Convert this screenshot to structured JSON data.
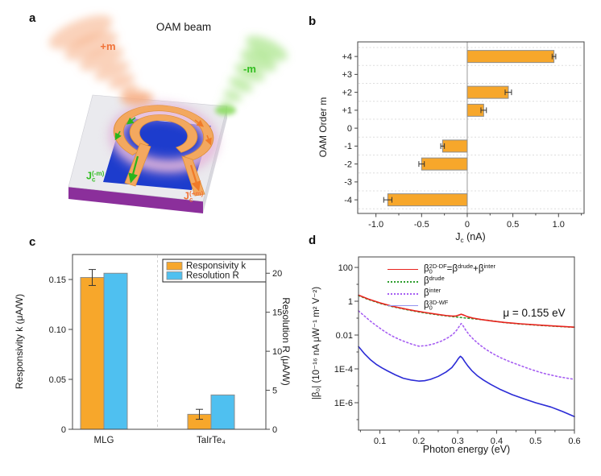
{
  "panel_labels": {
    "a": "a",
    "b": "b",
    "c": "c",
    "d": "d"
  },
  "panel_a": {
    "title": "OAM beam",
    "beam_plus": "+m",
    "beam_minus": "-m",
    "jc_minus_segments": [
      [
        "J",
        ""
      ],
      [
        "c",
        "sub"
      ],
      [
        "(-m)",
        "sup"
      ]
    ],
    "jc_plus_segments": [
      [
        "J",
        ""
      ],
      [
        "c",
        "sub"
      ],
      [
        "(+m)",
        "sup"
      ]
    ],
    "colors": {
      "beam_plus": "#f6ad83",
      "beam_plus_label": "#f0743a",
      "beam_minus": "#8fdc66",
      "beam_minus_label": "#33bd22",
      "substrate_top": "#eaeaee",
      "substrate_side_right": "#d8d8de",
      "substrate_side_bottom": "#8b2f9b",
      "film": "#1d3ccd",
      "ring_glow": "#dfa6d2",
      "ring_glow_inner": "#eec6e2",
      "electrode": "#f3a85f",
      "electrode_edge": "#dd8f3a",
      "arrow_minus": "#2ab51c",
      "arrow_plus": "#f07a28"
    }
  },
  "chart_data": [
    {
      "panel": "b",
      "type": "bar",
      "orientation": "horizontal",
      "categories": [
        "+4",
        "+3",
        "+2",
        "+1",
        "0",
        "-1",
        "-2",
        "-3",
        "-4"
      ],
      "values": [
        0.95,
        0,
        0.45,
        0.18,
        0,
        -0.27,
        -0.5,
        0,
        -0.87
      ],
      "errors": [
        0.02,
        0,
        0.035,
        0.03,
        0,
        0.02,
        0.03,
        0,
        0.045
      ],
      "ylabel": "OAM Order m",
      "xlabel_segments": [
        [
          "J",
          ""
        ],
        [
          "c",
          "sub"
        ],
        [
          " (nA)",
          ""
        ]
      ],
      "xlim": [
        -1.2,
        1.28
      ],
      "xticks": [
        {
          "v": -1,
          "label": "-1.0"
        },
        {
          "v": -0.5,
          "label": "-0.5"
        },
        {
          "v": 0,
          "label": "0"
        },
        {
          "v": 0.5,
          "label": "0.5"
        },
        {
          "v": 1,
          "label": "1.0"
        }
      ],
      "xminors": [
        -0.75,
        -0.25,
        0.25,
        0.75,
        1.25
      ],
      "grid": "dashed-horizontal",
      "bar_color": "#f7a72b",
      "bar_edge": "#8c8c8c",
      "error_color": "#333333"
    },
    {
      "panel": "c",
      "type": "bar",
      "orientation": "vertical",
      "categories": [
        "MLG",
        "TaIrTe₄"
      ],
      "series": [
        {
          "name": "Responsivity k",
          "axis": "left",
          "values": [
            0.152,
            0.015
          ],
          "errors": [
            0.008,
            0.005
          ],
          "color": "#f7a72b",
          "edge": "#8c8c8c"
        },
        {
          "name": "Resolution R",
          "axis": "right",
          "values": [
            20,
            4.4
          ],
          "errors": [
            0,
            0
          ],
          "color": "#4fc0f0",
          "edge": "#8c8c8c"
        }
      ],
      "left_axis": {
        "label": "Responsivity k (μA/W)",
        "lim": [
          0,
          0.175
        ],
        "ticks": [
          {
            "v": 0,
            "label": "0"
          },
          {
            "v": 0.05,
            "label": "0.05"
          },
          {
            "v": 0.1,
            "label": "0.10"
          },
          {
            "v": 0.15,
            "label": "0.15"
          }
        ]
      },
      "right_axis": {
        "label": "Resolution R (μA/W)",
        "lim": [
          0,
          22.4
        ],
        "ticks": [
          {
            "v": 0,
            "label": "0"
          },
          {
            "v": 5,
            "label": "5"
          },
          {
            "v": 10,
            "label": "10"
          },
          {
            "v": 15,
            "label": "15"
          },
          {
            "v": 20,
            "label": "20"
          }
        ]
      },
      "legend_position": "top-right",
      "separator": "dashed-vertical-between-groups",
      "error_color": "#333333"
    },
    {
      "panel": "d",
      "type": "line",
      "ylog": true,
      "xlabel": "Photon energy (eV)",
      "ylabel": "|β₀| (10⁻¹⁶ nA μW⁻¹ m² V⁻²)",
      "annotation": "μ = 0.155 eV",
      "xlim": [
        0.045,
        0.6
      ],
      "ylim": [
        2.4e-08,
        417
      ],
      "xticks": [
        {
          "v": 0.1,
          "label": "0.1"
        },
        {
          "v": 0.2,
          "label": "0.2"
        },
        {
          "v": 0.3,
          "label": "0.3"
        },
        {
          "v": 0.4,
          "label": "0.4"
        },
        {
          "v": 0.5,
          "label": "0.5"
        },
        {
          "v": 0.6,
          "label": "0.6"
        }
      ],
      "xminors": [
        0.05,
        0.15,
        0.25,
        0.35,
        0.45,
        0.55
      ],
      "yticks": [
        {
          "v": 100,
          "label": "100"
        },
        {
          "v": 1,
          "label": "1"
        },
        {
          "v": 0.01,
          "label": "0.01"
        },
        {
          "v": 0.0001,
          "label": "1E-4"
        },
        {
          "v": 1e-06,
          "label": "1E-6"
        }
      ],
      "yminor_exponents": [
        1,
        -1,
        -3,
        -5,
        -7
      ],
      "draw_order": [
        1,
        2,
        3,
        0
      ],
      "series": [
        {
          "name_segments": [
            [
              "β",
              ""
            ],
            [
              "0",
              "sub"
            ],
            [
              "2D-DF",
              "sup"
            ],
            [
              "=β",
              ""
            ],
            [
              "drude",
              "sup"
            ],
            [
              "+β",
              ""
            ],
            [
              "inter",
              "sup"
            ]
          ],
          "color": "#e8231e",
          "legend_color": "#e8231e",
          "style": "solid",
          "width": 1.6,
          "x": [
            0.045,
            0.07,
            0.1,
            0.13,
            0.16,
            0.19,
            0.22,
            0.25,
            0.27,
            0.285,
            0.295,
            0.303,
            0.309,
            0.316,
            0.325,
            0.34,
            0.36,
            0.39,
            0.42,
            0.46,
            0.5,
            0.55,
            0.6
          ],
          "y": [
            2.3,
            1.35,
            0.8,
            0.52,
            0.37,
            0.27,
            0.21,
            0.165,
            0.143,
            0.133,
            0.133,
            0.152,
            0.17,
            0.15,
            0.122,
            0.1,
            0.083,
            0.067,
            0.056,
            0.0465,
            0.04,
            0.034,
            0.0295
          ]
        },
        {
          "name_segments": [
            [
              "β",
              ""
            ],
            [
              "drude",
              "sup"
            ]
          ],
          "color": "#2f9e2f",
          "legend_color": "#2f9e2f",
          "style": "dotted",
          "width": 1.6,
          "x": [
            0.045,
            0.07,
            0.1,
            0.13,
            0.16,
            0.19,
            0.22,
            0.25,
            0.28,
            0.31,
            0.34,
            0.38,
            0.42,
            0.46,
            0.5,
            0.55,
            0.6
          ],
          "y": [
            2.15,
            1.27,
            0.75,
            0.49,
            0.35,
            0.255,
            0.196,
            0.155,
            0.128,
            0.108,
            0.0915,
            0.0735,
            0.0545,
            0.0452,
            0.0388,
            0.033,
            0.0287
          ]
        },
        {
          "name_segments": [
            [
              "β",
              ""
            ],
            [
              "inter",
              "sup"
            ]
          ],
          "color": "#a65ef2",
          "legend_color": "#a65ef2",
          "style": "dotted",
          "width": 1.6,
          "x": [
            0.045,
            0.06,
            0.075,
            0.09,
            0.105,
            0.12,
            0.135,
            0.15,
            0.165,
            0.18,
            0.2,
            0.22,
            0.24,
            0.26,
            0.275,
            0.288,
            0.297,
            0.304,
            0.309,
            0.314,
            0.321,
            0.33,
            0.342,
            0.356,
            0.372,
            0.39,
            0.41,
            0.435,
            0.46,
            0.49,
            0.52,
            0.56,
            0.6
          ],
          "y": [
            0.27,
            0.135,
            0.068,
            0.037,
            0.021,
            0.0125,
            0.008,
            0.0055,
            0.004,
            0.003,
            0.0022,
            0.0024,
            0.0031,
            0.0046,
            0.007,
            0.0112,
            0.019,
            0.033,
            0.048,
            0.035,
            0.019,
            0.01,
            0.0052,
            0.0027,
            0.00145,
            0.0008,
            0.00046,
            0.00026,
            0.00016,
            9e-05,
            5.5e-05,
            3.4e-05,
            2.4e-05
          ]
        },
        {
          "name_segments": [
            [
              "β",
              ""
            ],
            [
              "0",
              "sub"
            ],
            [
              "3D-WF",
              "sup"
            ]
          ],
          "color": "#2b2bd6",
          "legend_color": "#9393ef",
          "style": "solid",
          "width": 1.6,
          "x": [
            0.045,
            0.06,
            0.075,
            0.09,
            0.105,
            0.12,
            0.14,
            0.16,
            0.18,
            0.2,
            0.215,
            0.23,
            0.25,
            0.27,
            0.285,
            0.295,
            0.302,
            0.307,
            0.312,
            0.318,
            0.326,
            0.336,
            0.35,
            0.366,
            0.385,
            0.41,
            0.44,
            0.47,
            0.5,
            0.54,
            0.57,
            0.6
          ],
          "y": [
            0.0021,
            0.0008,
            0.00036,
            0.00019,
            0.000115,
            7.5e-05,
            4.4e-05,
            2.8e-05,
            2.2e-05,
            1.9e-05,
            2e-05,
            2.4e-05,
            3.6e-05,
            6.5e-05,
            0.00012,
            0.00024,
            0.00042,
            0.00056,
            0.00044,
            0.00027,
            0.00015,
            8e-05,
            4e-05,
            2.2e-05,
            1.2e-05,
            6e-06,
            3e-06,
            1.7e-06,
            1e-06,
            5.5e-07,
            3e-07,
            1.5e-07
          ]
        }
      ]
    }
  ]
}
